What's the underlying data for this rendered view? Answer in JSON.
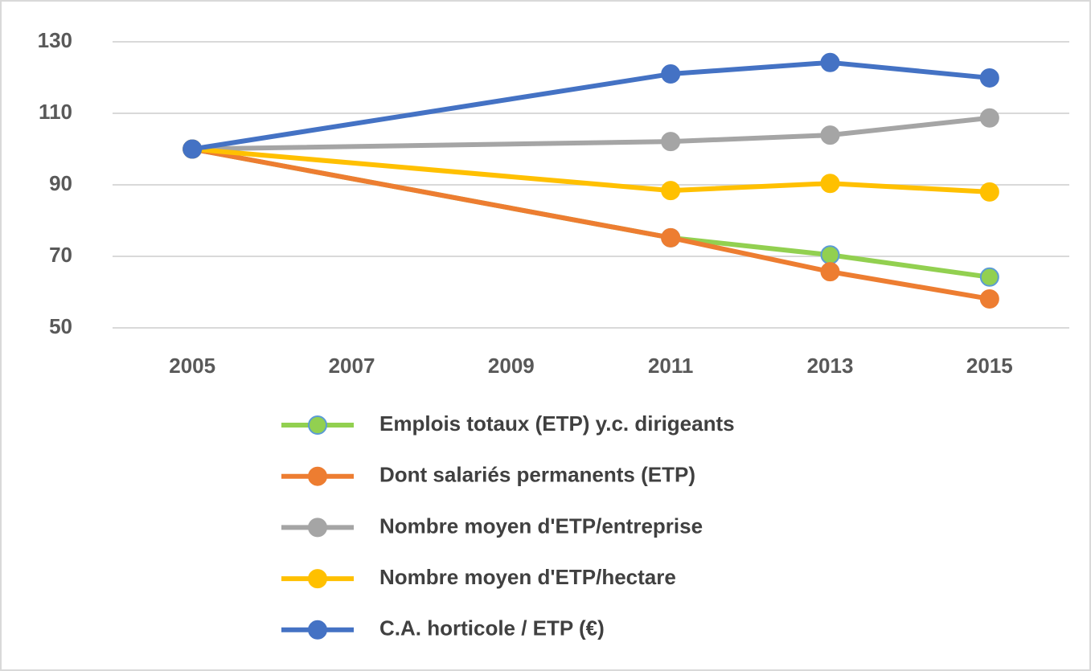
{
  "chart_data": {
    "type": "line",
    "x": [
      2005,
      2011,
      2013,
      2015
    ],
    "xlim": [
      2004,
      2016
    ],
    "xticks": [
      2005,
      2007,
      2009,
      2011,
      2013,
      2015
    ],
    "ylim": [
      50,
      130
    ],
    "yticks": [
      50,
      70,
      90,
      110,
      130
    ],
    "grid": true,
    "legend": "bottom",
    "series": [
      {
        "name": "Emplois totaux (ETP) y.c. dirigeants",
        "color": "#92d050",
        "edgecolor": "#5b9bd5",
        "values": [
          100,
          75.2,
          70.4,
          64.2
        ]
      },
      {
        "name": "Dont salariés permanents (ETP)",
        "color": "#ed7d31",
        "values": [
          100,
          75.2,
          65.7,
          58.1
        ]
      },
      {
        "name": "Nombre moyen d'ETP/entreprise",
        "color": "#a5a5a5",
        "values": [
          100,
          102.1,
          103.9,
          108.7
        ]
      },
      {
        "name": "Nombre moyen d'ETP/hectare",
        "color": "#ffc000",
        "values": [
          100,
          88.4,
          90.4,
          88
        ]
      },
      {
        "name": "C.A. horticole  / ETP (€)",
        "color": "#4472c4",
        "values": [
          100,
          121,
          124.2,
          119.9
        ]
      }
    ]
  }
}
